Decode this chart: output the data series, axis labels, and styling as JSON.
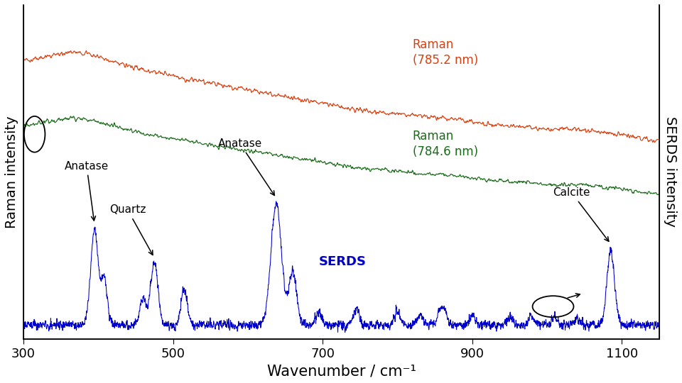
{
  "xlabel": "Wavenumber / cm⁻¹",
  "ylabel_left": "Raman intensity",
  "ylabel_right": "SERDS intensity",
  "xmin": 300,
  "xmax": 1150,
  "colors": {
    "raman785": "#d94010",
    "raman784": "#1a6b1a",
    "serds": "#0000cc"
  },
  "raman785_label": "Raman\n(785.2 nm)",
  "raman784_label": "Raman\n(784.6 nm)",
  "serds_label": "SERDS",
  "xticks": [
    300,
    500,
    700,
    900,
    1100
  ],
  "xtick_labels": [
    "300",
    "500",
    "700",
    "900",
    "1100"
  ]
}
